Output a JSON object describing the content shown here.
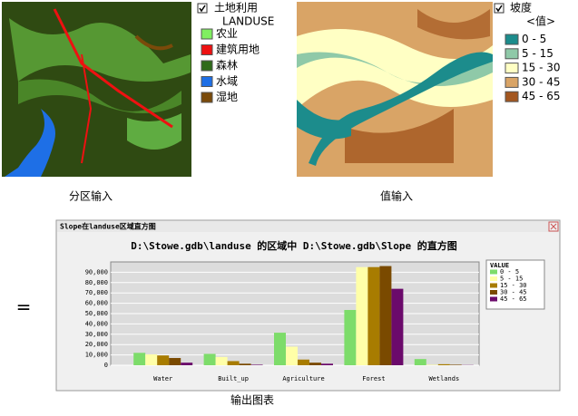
{
  "landuse_legend": {
    "title": "土地利用",
    "subtitle": "LANDUSE",
    "items": [
      {
        "label": "农业",
        "color": "#80ef60"
      },
      {
        "label": "建筑用地",
        "color": "#ee1111"
      },
      {
        "label": "森林",
        "color": "#2f6b1a"
      },
      {
        "label": "水域",
        "color": "#1e6fe6"
      },
      {
        "label": "湿地",
        "color": "#7a4a0a"
      }
    ]
  },
  "slope_legend": {
    "title": "坡度",
    "subtitle": "<值>",
    "items": [
      {
        "label": "0 - 5",
        "color": "#1c8c8c"
      },
      {
        "label": "5 - 15",
        "color": "#8fc9a8"
      },
      {
        "label": "15 - 30",
        "color": "#ffffc4"
      },
      {
        "label": "30 - 45",
        "color": "#d9a466"
      },
      {
        "label": "45 - 65",
        "color": "#a3561f"
      }
    ]
  },
  "captions": {
    "zone_input": "分区输入",
    "value_input": "值输入",
    "equals": "=",
    "output": "输出图表"
  },
  "window_title": "Slope在landuse区域直方图",
  "chart_data": {
    "type": "bar",
    "title": "D:\\Stowe.gdb\\landuse 的区域中 D:\\Stowe.gdb\\Slope 的直方图",
    "legend_title": "VALUE",
    "categories": [
      "Water",
      "Built_up",
      "Agriculture",
      "Forest",
      "Wetlands"
    ],
    "series": [
      {
        "name": "0 - 5",
        "color": "#7ddc6a",
        "values": [
          12000,
          11000,
          31500,
          53500,
          6000
        ]
      },
      {
        "name": "5 - 15",
        "color": "#ffffa8",
        "values": [
          10500,
          8000,
          18000,
          95000,
          500
        ]
      },
      {
        "name": "15 - 30",
        "color": "#a87c00",
        "values": [
          9500,
          4000,
          5500,
          95000,
          1000
        ]
      },
      {
        "name": "30 - 45",
        "color": "#7a4a00",
        "values": [
          7000,
          1500,
          2500,
          96000,
          500
        ]
      },
      {
        "name": "45 - 65",
        "color": "#6b0a6b",
        "values": [
          2500,
          500,
          1500,
          74000,
          200
        ]
      }
    ],
    "ylim": [
      0,
      100000
    ],
    "yticks": [
      0,
      {
        "value": 10000,
        "label": "10,000"
      },
      {
        "value": 20000,
        "label": "20,000"
      },
      {
        "value": 30000,
        "label": "30,000"
      },
      {
        "value": 40000,
        "label": "40,000"
      },
      {
        "value": 50000,
        "label": "50,000"
      },
      {
        "value": 60000,
        "label": "60,000"
      },
      {
        "value": 70000,
        "label": "70,000"
      },
      {
        "value": 80000,
        "label": "80,000"
      },
      {
        "value": 90000,
        "label": "90,000"
      }
    ],
    "grid": true
  }
}
